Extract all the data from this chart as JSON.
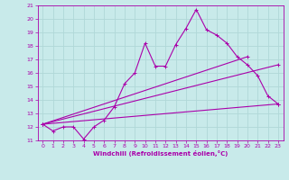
{
  "xlabel": "Windchill (Refroidissement éolien,°C)",
  "bg_color": "#c8eaea",
  "grid_color": "#b0d8d8",
  "line_color": "#aa00aa",
  "xlim": [
    -0.5,
    23.5
  ],
  "ylim": [
    11,
    21
  ],
  "yticks": [
    11,
    12,
    13,
    14,
    15,
    16,
    17,
    18,
    19,
    20,
    21
  ],
  "xticks": [
    0,
    1,
    2,
    3,
    4,
    5,
    6,
    7,
    8,
    9,
    10,
    11,
    12,
    13,
    14,
    15,
    16,
    17,
    18,
    19,
    20,
    21,
    22,
    23
  ],
  "series1_x": [
    0,
    1,
    2,
    3,
    4,
    5,
    6,
    7,
    8,
    9,
    10,
    11,
    12,
    13,
    14,
    15,
    16,
    17,
    18,
    19,
    20,
    21,
    22,
    23
  ],
  "series1_y": [
    12.2,
    11.7,
    12.0,
    12.0,
    11.1,
    12.0,
    12.5,
    13.5,
    15.2,
    16.0,
    18.2,
    16.5,
    16.5,
    18.1,
    19.3,
    20.7,
    19.2,
    18.8,
    18.2,
    17.2,
    16.6,
    15.8,
    14.3,
    13.7
  ],
  "series2_x": [
    0,
    23
  ],
  "series2_y": [
    12.2,
    16.6
  ],
  "series3_x": [
    0,
    23
  ],
  "series3_y": [
    12.2,
    13.7
  ],
  "series4_x": [
    0,
    20
  ],
  "series4_y": [
    12.2,
    17.2
  ]
}
